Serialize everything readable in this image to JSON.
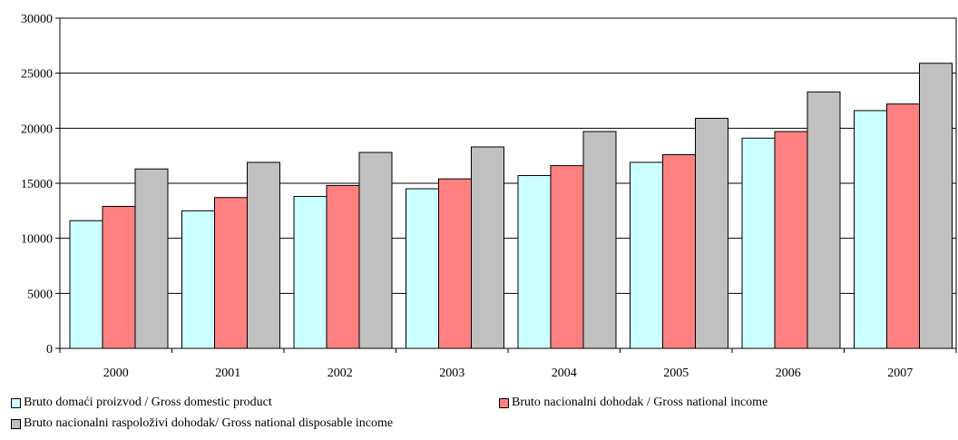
{
  "chart_data": {
    "type": "bar",
    "categories": [
      "2000",
      "2001",
      "2002",
      "2003",
      "2004",
      "2005",
      "2006",
      "2007"
    ],
    "series": [
      {
        "name": "Bruto domaći proizvod / Gross domestic product",
        "color": "#CCFFFF",
        "values": [
          11600,
          12500,
          13800,
          14500,
          15700,
          16900,
          19100,
          21600
        ]
      },
      {
        "name": "Bruto nacionalni dohodak / Gross national income",
        "color": "#FF8080",
        "values": [
          12900,
          13700,
          14800,
          15400,
          16600,
          17600,
          19700,
          22200
        ]
      },
      {
        "name": "Bruto nacionalni raspoloživi dohodak/ Gross national disposable income",
        "color": "#C0C0C0",
        "values": [
          16300,
          16900,
          17800,
          18300,
          19700,
          20900,
          23300,
          25900
        ]
      }
    ],
    "y_ticks": [
      "0",
      "5000",
      "10000",
      "15000",
      "20000",
      "25000",
      "30000"
    ],
    "ylim": [
      0,
      30000
    ],
    "grid": true,
    "legend": "bottom"
  }
}
